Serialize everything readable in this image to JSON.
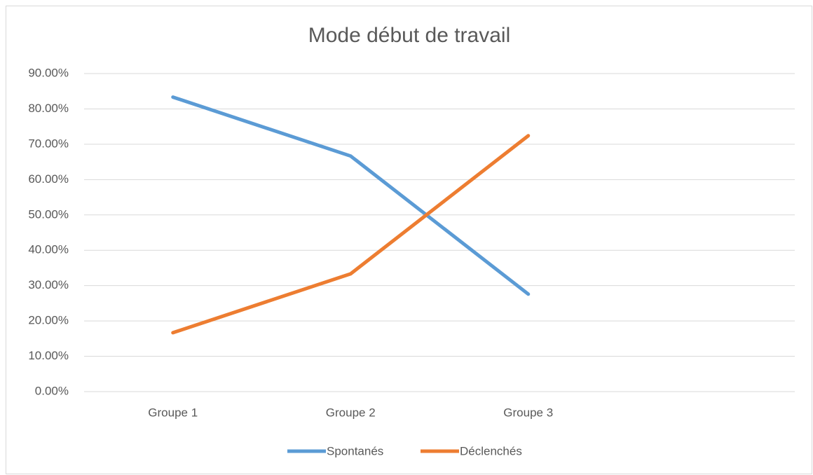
{
  "chart_data": {
    "type": "line",
    "title": "Mode début de travail",
    "categories": [
      "Groupe 1",
      "Groupe 2",
      "Groupe 3",
      null
    ],
    "series": [
      {
        "name": "Spontanés",
        "color": "#5b9bd5",
        "values": [
          83.33,
          66.67,
          27.59,
          null
        ]
      },
      {
        "name": "Déclenchés",
        "color": "#ed7d31",
        "values": [
          16.67,
          33.33,
          72.41,
          null
        ]
      }
    ],
    "ylim": [
      0,
      90
    ],
    "yticks": [
      {
        "value": 0,
        "label": "0.00%"
      },
      {
        "value": 10,
        "label": "10.00%"
      },
      {
        "value": 20,
        "label": "20.00%"
      },
      {
        "value": 30,
        "label": "30.00%"
      },
      {
        "value": 40,
        "label": "40.00%"
      },
      {
        "value": 50,
        "label": "50.00%"
      },
      {
        "value": 60,
        "label": "60.00%"
      },
      {
        "value": 70,
        "label": "70.00%"
      },
      {
        "value": 80,
        "label": "80.00%"
      },
      {
        "value": 90,
        "label": "90.00%"
      }
    ],
    "grid": true,
    "legend": "bottom"
  }
}
